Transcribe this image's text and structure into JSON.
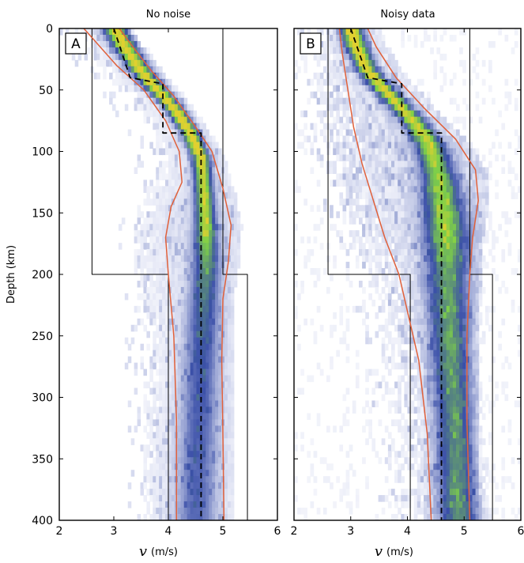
{
  "figure": {
    "ylabel": "Depth (km)",
    "xlabel_symbol": "v",
    "xlabel_unit": "(m/s)",
    "colors": {
      "density_low": "#e3e6f5",
      "density_mid": "#3a4fa8",
      "density_high": "#7ed048",
      "density_peak": "#e0d030",
      "credible_bound": "#e0603a",
      "true_model": "#000000",
      "prior_bounds": "#000000"
    }
  },
  "chart_data": [
    {
      "type": "heatmap",
      "panel": "A",
      "title": "No noise",
      "xlabel": "v (m/s)",
      "ylabel": "Depth (km)",
      "xlim": [
        2,
        6
      ],
      "ylim": [
        400,
        0
      ],
      "xticks": [
        "2",
        "3",
        "4",
        "5",
        "6"
      ],
      "yticks": [
        "0",
        "50",
        "100",
        "150",
        "200",
        "250",
        "300",
        "350",
        "400"
      ],
      "true_model": {
        "velocity": [
          3.0,
          3.0,
          3.3,
          3.3,
          3.9,
          3.9,
          4.6,
          4.6
        ],
        "depth": [
          0,
          0,
          40,
          40,
          45,
          85,
          85,
          400
        ]
      },
      "prior_lower": {
        "velocity": [
          2.6,
          2.6,
          4.0,
          4.0
        ],
        "depth": [
          0,
          200,
          200,
          400
        ]
      },
      "prior_upper": {
        "velocity": [
          5.0,
          5.0,
          5.45,
          5.45
        ],
        "depth": [
          0,
          200,
          200,
          400
        ]
      },
      "posterior_mode": {
        "velocity": [
          3.0,
          3.2,
          3.5,
          3.8,
          4.1,
          4.4,
          4.6,
          4.65,
          4.68,
          4.7,
          4.66,
          4.6,
          4.55,
          4.5
        ],
        "depth": [
          0,
          15,
          35,
          50,
          65,
          85,
          105,
          130,
          160,
          190,
          220,
          280,
          340,
          400
        ]
      },
      "credible_lower": {
        "velocity": [
          2.45,
          2.65,
          3.05,
          3.55,
          3.95,
          4.2,
          4.25,
          4.05,
          3.95,
          4.0,
          4.1,
          4.15,
          4.15
        ],
        "depth": [
          0,
          10,
          30,
          50,
          75,
          100,
          125,
          145,
          170,
          200,
          250,
          320,
          400
        ]
      },
      "credible_upper": {
        "velocity": [
          3.1,
          3.35,
          3.7,
          4.1,
          4.5,
          4.8,
          5.0,
          5.15,
          5.1,
          5.0,
          4.98,
          5.0,
          5.02
        ],
        "depth": [
          0,
          15,
          35,
          55,
          80,
          100,
          130,
          160,
          190,
          220,
          270,
          330,
          400
        ]
      },
      "density_spread": {
        "depth": [
          0,
          40,
          80,
          120,
          160,
          200,
          260,
          320,
          400
        ],
        "width": [
          0.14,
          0.12,
          0.1,
          0.1,
          0.12,
          0.16,
          0.2,
          0.22,
          0.24
        ],
        "peak": [
          0.9,
          0.95,
          1.0,
          0.85,
          0.8,
          0.5,
          0.35,
          0.3,
          0.28
        ]
      }
    },
    {
      "type": "heatmap",
      "panel": "B",
      "title": "Noisy data",
      "xlabel": "v (m/s)",
      "ylabel": "Depth (km)",
      "xlim": [
        2,
        6
      ],
      "ylim": [
        400,
        0
      ],
      "xticks": [
        "2",
        "3",
        "4",
        "5",
        "6"
      ],
      "yticks": [
        "0",
        "50",
        "100",
        "150",
        "200",
        "250",
        "300",
        "350",
        "400"
      ],
      "true_model": {
        "velocity": [
          3.0,
          3.0,
          3.3,
          3.3,
          3.9,
          3.9,
          4.6,
          4.6
        ],
        "depth": [
          0,
          0,
          40,
          40,
          45,
          85,
          85,
          400
        ]
      },
      "prior_lower": {
        "velocity": [
          2.6,
          2.6,
          4.05,
          4.05
        ],
        "depth": [
          0,
          200,
          200,
          400
        ]
      },
      "prior_upper": {
        "velocity": [
          5.1,
          5.1,
          5.5,
          5.5
        ],
        "depth": [
          0,
          200,
          200,
          400
        ]
      },
      "posterior_mode": {
        "velocity": [
          3.0,
          3.1,
          3.3,
          3.7,
          4.1,
          4.4,
          4.55,
          4.65,
          4.7,
          4.72,
          4.75,
          4.8,
          4.85,
          4.9
        ],
        "depth": [
          0,
          15,
          35,
          55,
          75,
          95,
          120,
          150,
          180,
          220,
          260,
          300,
          350,
          400
        ]
      },
      "credible_lower": {
        "velocity": [
          2.8,
          2.85,
          2.95,
          3.05,
          3.2,
          3.4,
          3.6,
          3.85,
          4.0,
          4.2,
          4.35,
          4.42
        ],
        "depth": [
          0,
          20,
          50,
          80,
          110,
          140,
          170,
          200,
          230,
          270,
          330,
          400
        ]
      },
      "credible_upper": {
        "velocity": [
          3.3,
          3.45,
          3.8,
          4.3,
          4.85,
          5.2,
          5.25,
          5.15,
          5.1,
          5.05,
          5.05,
          5.1
        ],
        "depth": [
          0,
          15,
          40,
          65,
          90,
          115,
          140,
          170,
          200,
          250,
          320,
          400
        ]
      },
      "density_spread": {
        "depth": [
          0,
          40,
          80,
          120,
          160,
          200,
          260,
          320,
          400
        ],
        "width": [
          0.12,
          0.12,
          0.14,
          0.2,
          0.24,
          0.24,
          0.22,
          0.22,
          0.24
        ],
        "peak": [
          1.0,
          0.9,
          0.85,
          0.7,
          0.75,
          0.55,
          0.55,
          0.5,
          0.5
        ]
      }
    }
  ]
}
